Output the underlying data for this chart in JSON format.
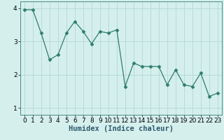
{
  "x": [
    0,
    1,
    2,
    3,
    4,
    5,
    6,
    7,
    8,
    9,
    10,
    11,
    12,
    13,
    14,
    15,
    16,
    17,
    18,
    19,
    20,
    21,
    22,
    23
  ],
  "y": [
    3.95,
    3.95,
    3.25,
    2.45,
    2.6,
    3.25,
    3.6,
    3.3,
    2.93,
    3.3,
    3.25,
    3.35,
    1.65,
    2.35,
    2.25,
    2.25,
    2.25,
    1.7,
    2.15,
    1.7,
    1.65,
    2.05,
    1.35,
    1.45
  ],
  "line_color": "#2e7d6e",
  "marker": "D",
  "marker_size": 2.5,
  "bg_color": "#d5efed",
  "grid_color": "#b8dbd8",
  "xlabel": "Humidex (Indice chaleur)",
  "ylim": [
    0.8,
    4.2
  ],
  "xlim": [
    -0.5,
    23.5
  ],
  "yticks": [
    1,
    2,
    3,
    4
  ],
  "xticks": [
    0,
    1,
    2,
    3,
    4,
    5,
    6,
    7,
    8,
    9,
    10,
    11,
    12,
    13,
    14,
    15,
    16,
    17,
    18,
    19,
    20,
    21,
    22,
    23
  ],
  "xlabel_fontsize": 7.5,
  "tick_fontsize": 6.5
}
